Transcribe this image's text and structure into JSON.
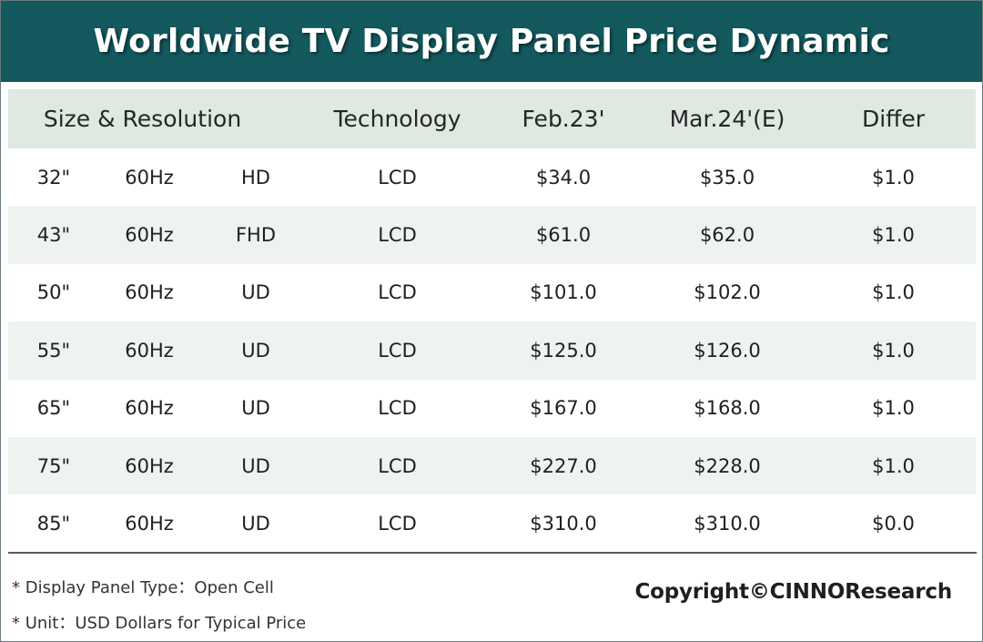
{
  "title": "Worldwide TV Display Panel Price Dynamic",
  "colors": {
    "banner": "#13595e",
    "header_row": "#dde9e1",
    "shaded_row": "#eef3ef"
  },
  "chart_data": {
    "type": "table",
    "title": "Worldwide TV Display Panel Price Dynamic",
    "columns": [
      "Size & Resolution",
      "Technology",
      "Feb.23'",
      "Mar.24'(E)",
      "Differ"
    ],
    "rows": [
      {
        "size": "32\"",
        "refresh": "60Hz",
        "resolution": "HD",
        "technology": "LCD",
        "feb": "$34.0",
        "mar": "$35.0",
        "differ": "$1.0"
      },
      {
        "size": "43\"",
        "refresh": "60Hz",
        "resolution": "FHD",
        "technology": "LCD",
        "feb": "$61.0",
        "mar": "$62.0",
        "differ": "$1.0"
      },
      {
        "size": "50\"",
        "refresh": "60Hz",
        "resolution": "UD",
        "technology": "LCD",
        "feb": "$101.0",
        "mar": "$102.0",
        "differ": "$1.0"
      },
      {
        "size": "55\"",
        "refresh": "60Hz",
        "resolution": "UD",
        "technology": "LCD",
        "feb": "$125.0",
        "mar": "$126.0",
        "differ": "$1.0"
      },
      {
        "size": "65\"",
        "refresh": "60Hz",
        "resolution": "UD",
        "technology": "LCD",
        "feb": "$167.0",
        "mar": "$168.0",
        "differ": "$1.0"
      },
      {
        "size": "75\"",
        "refresh": "60Hz",
        "resolution": "UD",
        "technology": "LCD",
        "feb": "$227.0",
        "mar": "$228.0",
        "differ": "$1.0"
      },
      {
        "size": "85\"",
        "refresh": "60Hz",
        "resolution": "UD",
        "technology": "LCD",
        "feb": "$310.0",
        "mar": "$310.0",
        "differ": "$0.0"
      }
    ]
  },
  "notes": [
    "* Display Panel Type：Open Cell",
    "* Unit：USD Dollars for Typical Price"
  ],
  "copyright": "Copyright©CINNOResearch"
}
